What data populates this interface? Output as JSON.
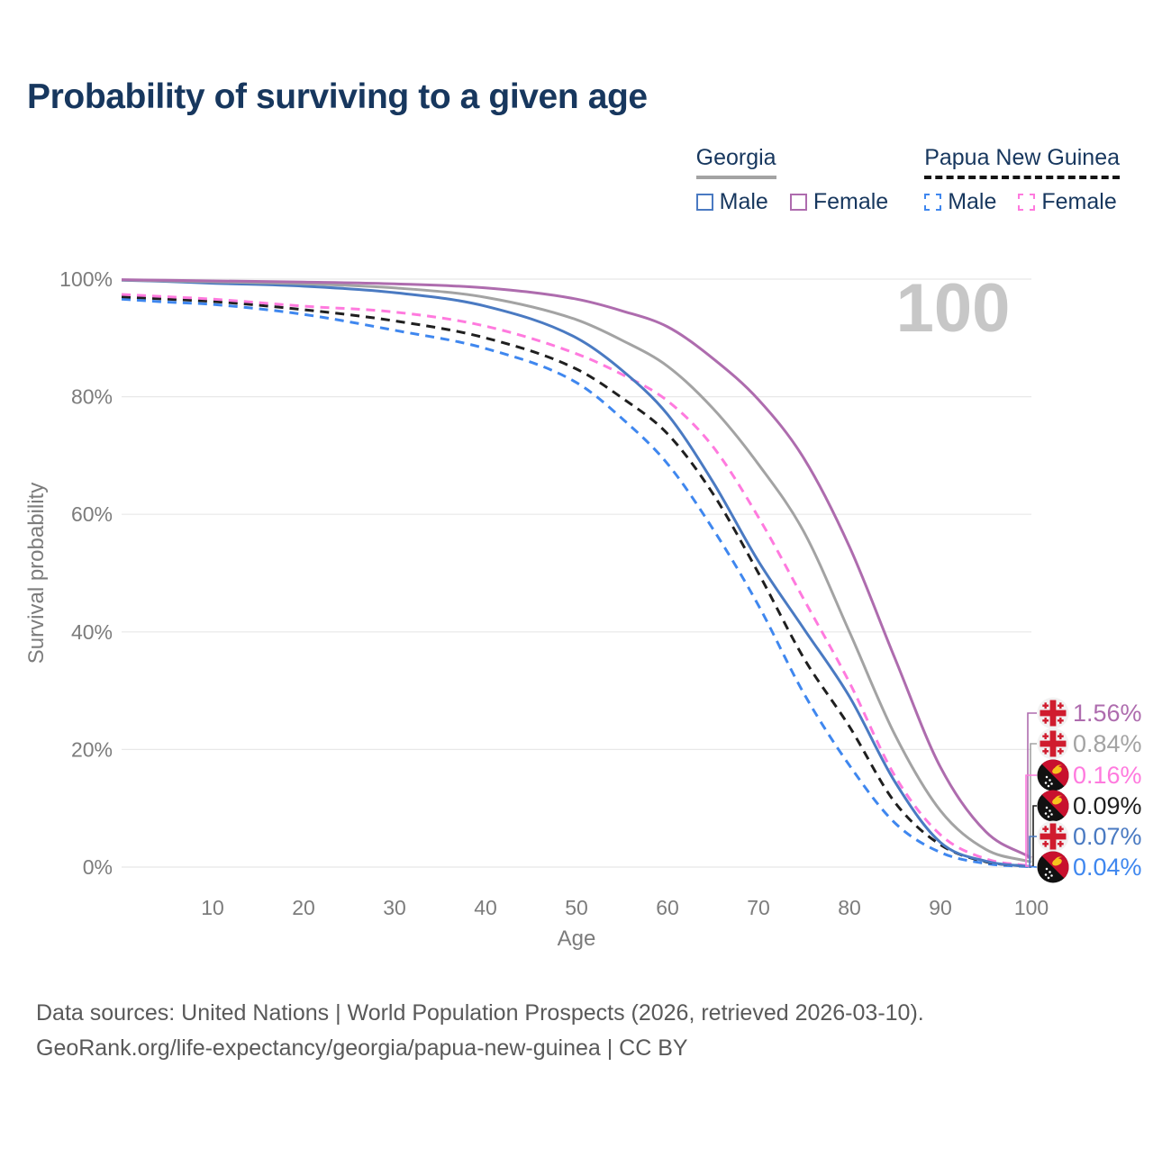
{
  "title": "Probability of surviving to a given age",
  "watermark": "100",
  "legend": {
    "georgia": {
      "title": "Georgia",
      "male": "Male",
      "female": "Female"
    },
    "png": {
      "title": "Papua New Guinea",
      "male": "Male",
      "female": "Female"
    }
  },
  "axes": {
    "x": {
      "label": "Age",
      "min": 0,
      "max": 100,
      "ticks": [
        {
          "v": 10,
          "label": "10"
        },
        {
          "v": 20,
          "label": "20"
        },
        {
          "v": 30,
          "label": "30"
        },
        {
          "v": 40,
          "label": "40"
        },
        {
          "v": 50,
          "label": "50"
        },
        {
          "v": 60,
          "label": "60"
        },
        {
          "v": 70,
          "label": "70"
        },
        {
          "v": 80,
          "label": "80"
        },
        {
          "v": 90,
          "label": "90"
        },
        {
          "v": 100,
          "label": "100"
        }
      ]
    },
    "y": {
      "label": "Survival probability",
      "min": 0,
      "max": 100,
      "ticks": [
        {
          "v": 0,
          "label": "0%"
        },
        {
          "v": 20,
          "label": "20%"
        },
        {
          "v": 40,
          "label": "40%"
        },
        {
          "v": 60,
          "label": "60%"
        },
        {
          "v": 80,
          "label": "80%"
        },
        {
          "v": 100,
          "label": "100%"
        }
      ]
    }
  },
  "end_labels": [
    {
      "series": "georgia_female",
      "country": "georgia",
      "value": "1.56%"
    },
    {
      "series": "georgia_both",
      "country": "georgia",
      "value": "0.84%"
    },
    {
      "series": "png_female",
      "country": "png",
      "value": "0.16%"
    },
    {
      "series": "png_both",
      "country": "png",
      "value": "0.09%"
    },
    {
      "series": "georgia_male",
      "country": "georgia",
      "value": "0.07%"
    },
    {
      "series": "png_male",
      "country": "png",
      "value": "0.04%"
    }
  ],
  "footer": {
    "line1": "Data sources: United Nations | World Population Prospects (2026, retrieved 2026-03-10).",
    "line2": "GeoRank.org/life-expectancy/georgia/papua-new-guinea | CC BY"
  },
  "colors": {
    "title": "#17375e",
    "axis_text": "#7c7c7c",
    "grid": "#e8e8e8",
    "watermark": "#c7c7c7",
    "footer": "#595959",
    "georgia_male": "#4a7ac2",
    "georgia_female": "#ae6cae",
    "georgia_both": "#a3a3a3",
    "png_male": "#3f87ef",
    "png_female": "#ff7ade",
    "png_both": "#1f1f1f",
    "georgia_flag_red": "#d01c2e",
    "png_flag_red": "#c8102e",
    "png_flag_yellow": "#f7c31e",
    "flag_bg": "#f2f2f2"
  },
  "chart_data": {
    "type": "line",
    "title": "Probability of surviving to a given age",
    "xlabel": "Age",
    "ylabel": "Survival probability",
    "xlim": [
      0,
      100
    ],
    "ylim": [
      0,
      100
    ],
    "grid": true,
    "legend_position": "top-right",
    "x": [
      0,
      5,
      10,
      20,
      30,
      40,
      50,
      55,
      60,
      65,
      70,
      75,
      80,
      85,
      90,
      95,
      100
    ],
    "series": [
      {
        "name": "Papua New Guinea Male",
        "key": "png_male",
        "style": "dashed",
        "values": [
          96.6,
          96.1,
          95.7,
          94.0,
          91.3,
          88.2,
          82.4,
          76.3,
          68.6,
          57.5,
          44.5,
          29.5,
          17.3,
          7.5,
          2.5,
          0.6,
          0.04
        ]
      },
      {
        "name": "Papua New Guinea Both sexes",
        "key": "png_both",
        "style": "dashed",
        "values": [
          97.0,
          96.6,
          96.2,
          94.8,
          92.9,
          90.0,
          84.7,
          79.8,
          73.7,
          63.5,
          50.0,
          35.5,
          23.9,
          11.0,
          3.8,
          0.9,
          0.09
        ]
      },
      {
        "name": "Papua New Guinea Female",
        "key": "png_female",
        "style": "dashed",
        "values": [
          97.4,
          97.0,
          96.6,
          95.4,
          94.4,
          92.0,
          87.3,
          83.8,
          79.3,
          71.5,
          59.5,
          45.5,
          31.4,
          15.5,
          5.5,
          1.4,
          0.16
        ]
      },
      {
        "name": "Georgia Male",
        "key": "georgia_male",
        "style": "solid",
        "values": [
          99.8,
          99.6,
          99.3,
          98.8,
          97.7,
          95.4,
          90.0,
          84.5,
          77.0,
          65.5,
          52.0,
          40.5,
          29.0,
          14.5,
          4.2,
          1.0,
          0.07
        ]
      },
      {
        "name": "Georgia Both sexes",
        "key": "georgia_both",
        "style": "solid",
        "values": [
          99.85,
          99.7,
          99.55,
          99.2,
          98.5,
          96.9,
          93.1,
          89.6,
          85.2,
          78.0,
          68.5,
          57.0,
          40.0,
          22.5,
          9.6,
          3.0,
          0.84
        ]
      },
      {
        "name": "Georgia Female",
        "key": "georgia_female",
        "style": "solid",
        "values": [
          99.9,
          99.8,
          99.7,
          99.5,
          99.2,
          98.5,
          96.6,
          94.6,
          91.9,
          86.5,
          79.5,
          69.5,
          54.5,
          35.5,
          17.0,
          6.0,
          1.56
        ]
      }
    ]
  }
}
